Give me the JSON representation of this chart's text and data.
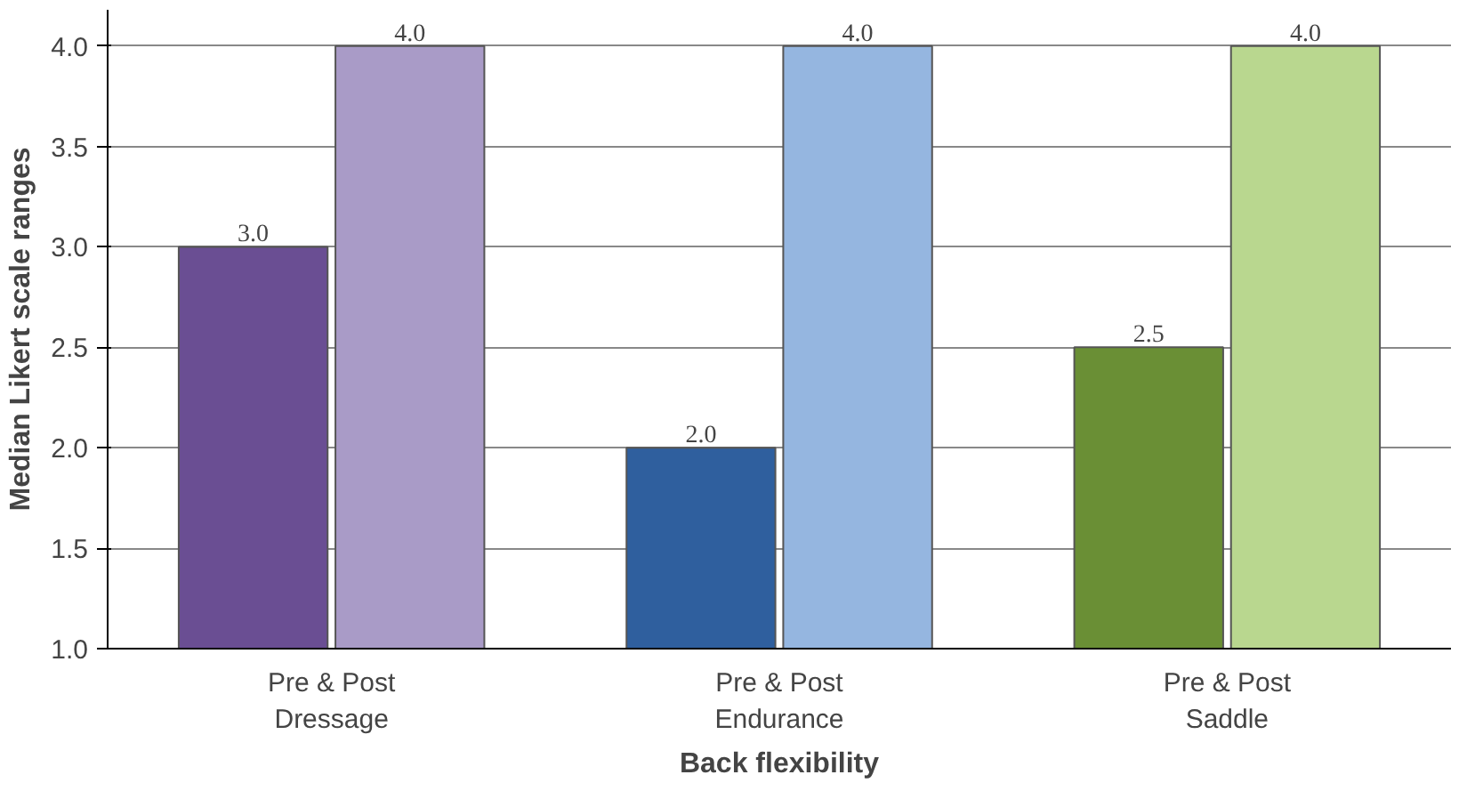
{
  "chart_data": {
    "type": "bar",
    "xlabel": "Back flexibility",
    "ylabel": "Median Likert scale ranges",
    "categories": [
      "Pre & Post\nDressage",
      "Pre & Post\nEndurance",
      "Pre & Post\nSaddle"
    ],
    "series": [
      {
        "colors": [
          "#6a4e93",
          "#2f5f9e",
          "#6a8f35"
        ],
        "values": [
          3.0,
          2.0,
          2.5
        ],
        "value_labels": [
          "3.0",
          "2.0",
          "2.5"
        ]
      },
      {
        "colors": [
          "#a99bc7",
          "#95b6e0",
          "#b9d78f"
        ],
        "values": [
          4.0,
          4.0,
          4.0
        ],
        "value_labels": [
          "4.0",
          "4.0",
          "4.0"
        ]
      }
    ],
    "ylim": [
      1.0,
      4.0
    ],
    "yticks": [
      {
        "value": 1.0,
        "label": "1.0"
      },
      {
        "value": 1.5,
        "label": "1.5"
      },
      {
        "value": 2.0,
        "label": "2.0"
      },
      {
        "value": 2.5,
        "label": "2.5"
      },
      {
        "value": 3.0,
        "label": "3.0"
      },
      {
        "value": 3.5,
        "label": "3.5"
      },
      {
        "value": 4.0,
        "label": "4.0"
      }
    ],
    "grid": "y"
  }
}
